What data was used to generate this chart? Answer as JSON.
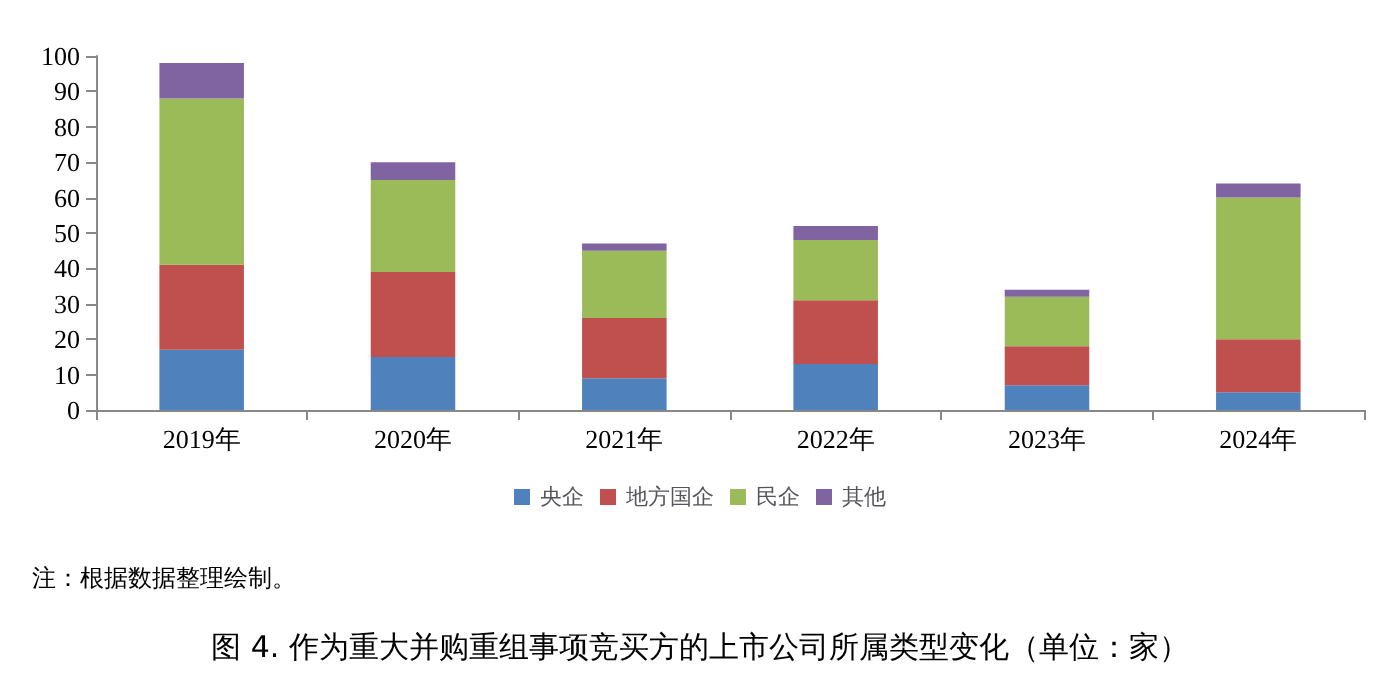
{
  "chart_data": {
    "type": "bar",
    "stacked": true,
    "title": "图 4. 作为重大并购重组事项竞买方的上市公司所属类型变化（单位：家）",
    "annotations": [
      "注：根据数据整理绘制。"
    ],
    "categories": [
      "2019年",
      "2020年",
      "2021年",
      "2022年",
      "2023年",
      "2024年"
    ],
    "series": [
      {
        "name": "央企",
        "color": "#4f81bd",
        "values": [
          17,
          15,
          9,
          13,
          7,
          5
        ]
      },
      {
        "name": "地方国企",
        "color": "#c0504d",
        "values": [
          24,
          24,
          17,
          18,
          11,
          15
        ]
      },
      {
        "name": "民企",
        "color": "#9bbb59",
        "values": [
          47,
          26,
          19,
          17,
          14,
          40
        ]
      },
      {
        "name": "其他",
        "color": "#8064a2",
        "values": [
          10,
          5,
          2,
          4,
          2,
          4
        ]
      }
    ],
    "ylim": [
      0,
      100
    ],
    "yticks": [
      0,
      10,
      20,
      30,
      40,
      50,
      60,
      70,
      80,
      90,
      100
    ],
    "grid": false,
    "legend": "bottom"
  }
}
